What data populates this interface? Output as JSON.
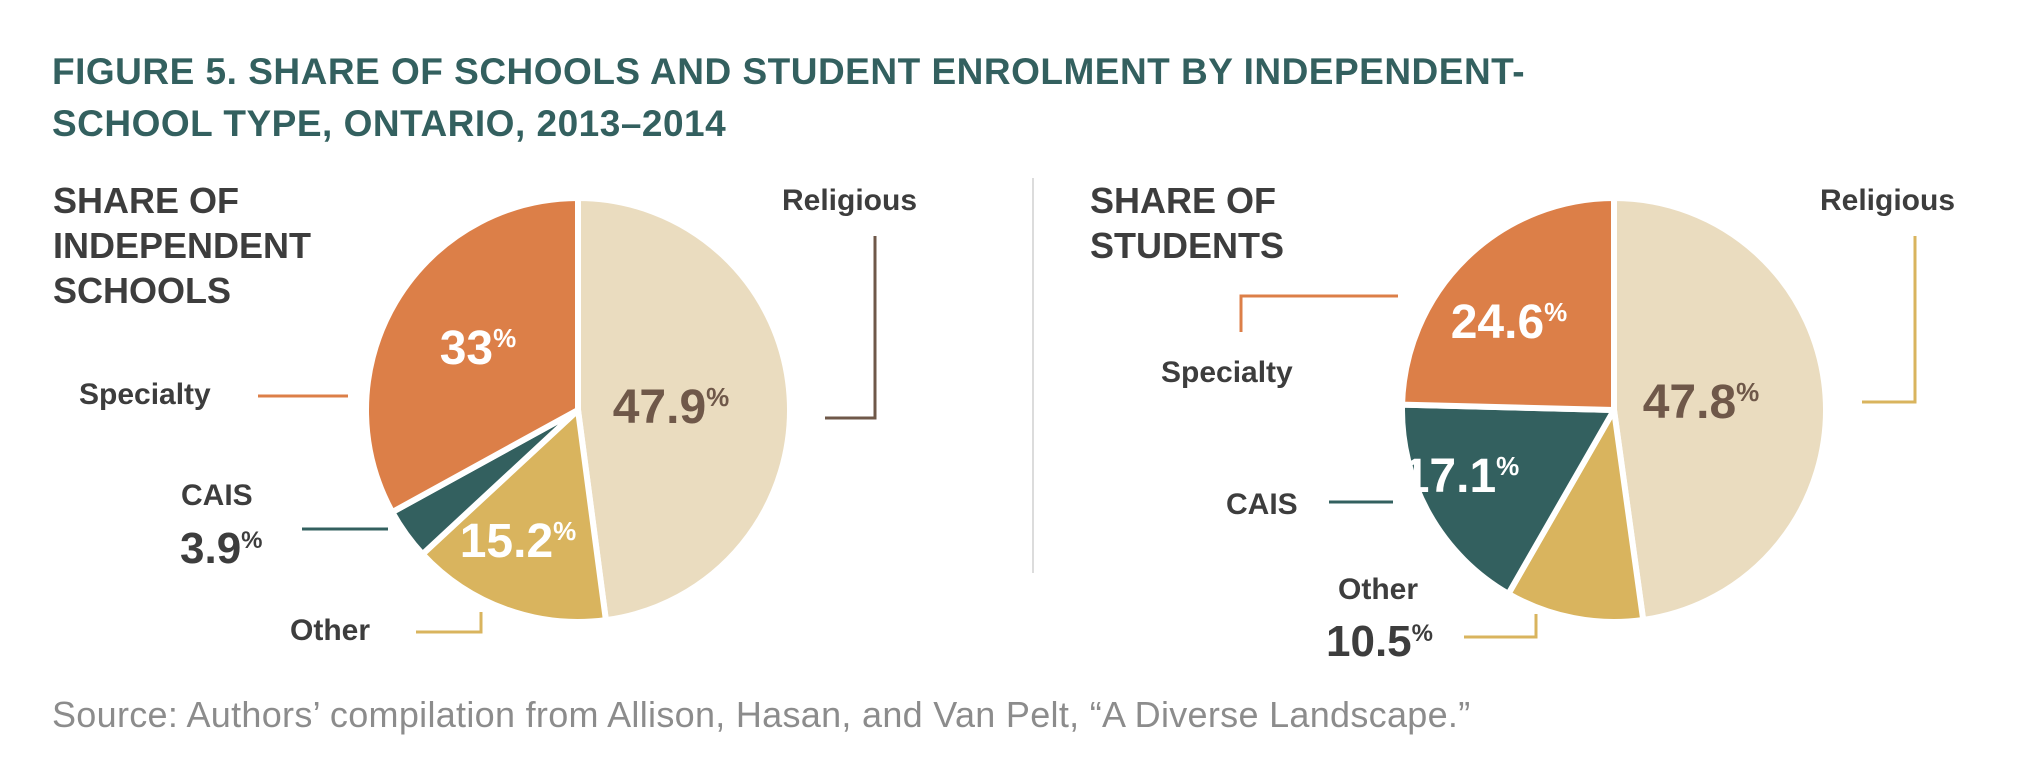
{
  "title": {
    "line1": "FIGURE 5. SHARE OF SCHOOLS AND STUDENT ENROLMENT BY INDEPENDENT-",
    "line2": "SCHOOL TYPE, ONTARIO, 2013–2014"
  },
  "source": "Source: Authors’ compilation from Allison, Hasan, and Van Pelt, “A Diverse Landscape.”",
  "colors": {
    "religious": "#eadcbf",
    "specialty": "#dc7f48",
    "cais": "#33605f",
    "other": "#d9b45e",
    "religious_leader": "#6f5849",
    "religious_leader_right": "#d9b45e",
    "label_dark": "#3d3d3d",
    "value_brown": "#6f5849"
  },
  "chart_data": [
    {
      "type": "pie",
      "title_lines": [
        "SHARE OF",
        "INDEPENDENT",
        "SCHOOLS"
      ],
      "unit": "%",
      "slices": [
        {
          "label": "Religious",
          "value": 47.9,
          "value_text": "47.9"
        },
        {
          "label": "Other",
          "value": 15.2,
          "value_text": "15.2"
        },
        {
          "label": "CAIS",
          "value": 3.9,
          "value_text": "3.9"
        },
        {
          "label": "Specialty",
          "value": 33,
          "value_text": "33"
        }
      ]
    },
    {
      "type": "pie",
      "title_lines": [
        "SHARE OF",
        "STUDENTS"
      ],
      "unit": "%",
      "slices": [
        {
          "label": "Religious",
          "value": 47.8,
          "value_text": "47.8"
        },
        {
          "label": "Other",
          "value": 10.5,
          "value_text": "10.5"
        },
        {
          "label": "CAIS",
          "value": 17.1,
          "value_text": "17.1"
        },
        {
          "label": "Specialty",
          "value": 24.6,
          "value_text": "24.6"
        }
      ]
    }
  ]
}
